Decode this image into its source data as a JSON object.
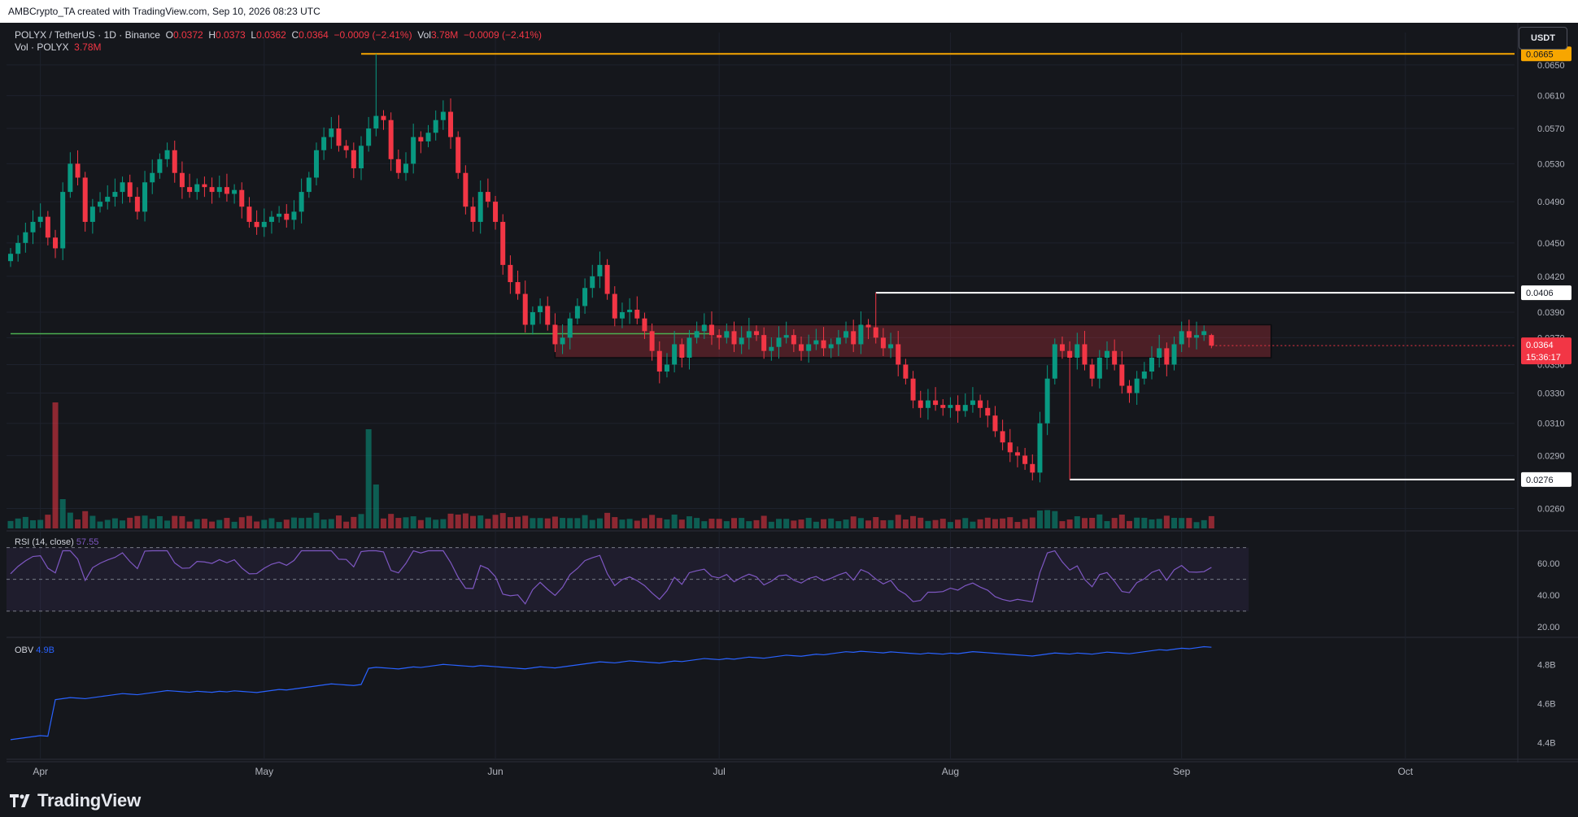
{
  "header": {
    "credit": "AMBCrypto_TA created with TradingView.com, Sep 10, 2026 08:23 UTC"
  },
  "legend": {
    "symbol": "POLYX / TetherUS · 1D · Binance",
    "o_label": "O",
    "o_value": "0.0372",
    "h_label": "H",
    "h_value": "0.0373",
    "l_label": "L",
    "l_value": "0.0362",
    "c_label": "C",
    "c_value": "0.0364",
    "change": "−0.0009 (−2.41%)",
    "vol_label": "Vol",
    "vol_value": "3.78M",
    "vol_change": "−0.0009 (−2.41%)",
    "vol_row_label": "Vol · POLYX",
    "vol_row_value": "3.78M"
  },
  "quote_button": "USDT",
  "colors": {
    "up": "#089981",
    "down": "#f23645",
    "rsi": "#7e57c2",
    "obv": "#2962ff",
    "high_line": "#f7a600",
    "support_line": "#4caf50",
    "zone": "#f23645"
  },
  "chart_data": {
    "type": "candlestick",
    "price_scale": {
      "labels": [
        "0.0650",
        "0.0610",
        "0.0570",
        "0.0530",
        "0.0490",
        "0.0450",
        "0.0420",
        "0.0390",
        "0.0370",
        "0.0350",
        "0.0330",
        "0.0310",
        "0.0290",
        "0.0260"
      ],
      "scale": "log"
    },
    "price_badges": [
      {
        "value": "0.0665",
        "color": "#f7a600",
        "text_color": "#131722"
      },
      {
        "value": "0.0406",
        "color": "#ffffff",
        "text_color": "#131722"
      },
      {
        "value": "0.0276",
        "color": "#ffffff",
        "text_color": "#131722"
      }
    ],
    "current_price": {
      "value": "0.0364",
      "countdown": "15:36:17",
      "color": "#f23645"
    },
    "horizontal_lines": [
      {
        "price": 0.0665,
        "from_date": "2026-05-14",
        "color": "#f7a600"
      },
      {
        "price": 0.0406,
        "from_date": "2026-07-22",
        "color": "#ffffff"
      },
      {
        "price": 0.0276,
        "from_date": "2026-08-17",
        "color": "#ffffff"
      },
      {
        "price": 0.0373,
        "from_date": "2026-03-28",
        "to_date": "2026-06-30",
        "color": "#4caf50"
      }
    ],
    "zone": {
      "from_date": "2026-06-09",
      "to_date": "2026-09-13",
      "top": 0.038,
      "bottom": 0.0355
    },
    "x_labels": [
      "Apr",
      "May",
      "Jun",
      "Jul",
      "Aug",
      "Sep",
      "Oct"
    ],
    "close": [
      0.044,
      0.045,
      0.046,
      0.047,
      0.0475,
      0.0455,
      0.0445,
      0.05,
      0.053,
      0.0515,
      0.047,
      0.0485,
      0.049,
      0.0495,
      0.05,
      0.051,
      0.0495,
      0.048,
      0.051,
      0.052,
      0.0535,
      0.0545,
      0.052,
      0.0505,
      0.05,
      0.0508,
      0.0505,
      0.05,
      0.0505,
      0.0498,
      0.0502,
      0.0485,
      0.047,
      0.0465,
      0.047,
      0.0475,
      0.0478,
      0.0472,
      0.048,
      0.05,
      0.0515,
      0.0545,
      0.056,
      0.057,
      0.055,
      0.0545,
      0.0525,
      0.055,
      0.057,
      0.0585,
      0.058,
      0.0535,
      0.052,
      0.053,
      0.056,
      0.0555,
      0.0565,
      0.058,
      0.059,
      0.056,
      0.052,
      0.0485,
      0.047,
      0.05,
      0.049,
      0.047,
      0.043,
      0.0415,
      0.0405,
      0.038,
      0.039,
      0.0395,
      0.038,
      0.0365,
      0.037,
      0.0385,
      0.0395,
      0.041,
      0.042,
      0.043,
      0.0405,
      0.0385,
      0.039,
      0.0392,
      0.0385,
      0.0375,
      0.036,
      0.0345,
      0.035,
      0.0365,
      0.0355,
      0.037,
      0.0375,
      0.038,
      0.0372,
      0.037,
      0.0375,
      0.0365,
      0.037,
      0.0375,
      0.0372,
      0.036,
      0.0363,
      0.037,
      0.0372,
      0.0365,
      0.036,
      0.0365,
      0.0368,
      0.0362,
      0.0365,
      0.037,
      0.0375,
      0.0365,
      0.038,
      0.0378,
      0.037,
      0.0362,
      0.0365,
      0.035,
      0.034,
      0.0325,
      0.032,
      0.0325,
      0.0322,
      0.032,
      0.0322,
      0.0318,
      0.0322,
      0.0325,
      0.032,
      0.0315,
      0.0305,
      0.0298,
      0.0292,
      0.029,
      0.0285,
      0.028,
      0.031,
      0.034,
      0.0365,
      0.036,
      0.0355,
      0.0365,
      0.035,
      0.034,
      0.0355,
      0.036,
      0.035,
      0.0335,
      0.033,
      0.034,
      0.0345,
      0.0355,
      0.0362,
      0.035,
      0.0365,
      0.0375,
      0.037,
      0.0372,
      0.0375,
      0.0364
    ],
    "rsi": {
      "label": "RSI (14, close)",
      "value": "57.55",
      "levels": [
        70,
        50,
        30
      ],
      "ticks": [
        "60.00",
        "40.00",
        "20.00"
      ]
    },
    "obv": {
      "label": "OBV",
      "value": "4.9B",
      "ticks": [
        "4.8B",
        "4.6B",
        "4.4B"
      ]
    }
  }
}
